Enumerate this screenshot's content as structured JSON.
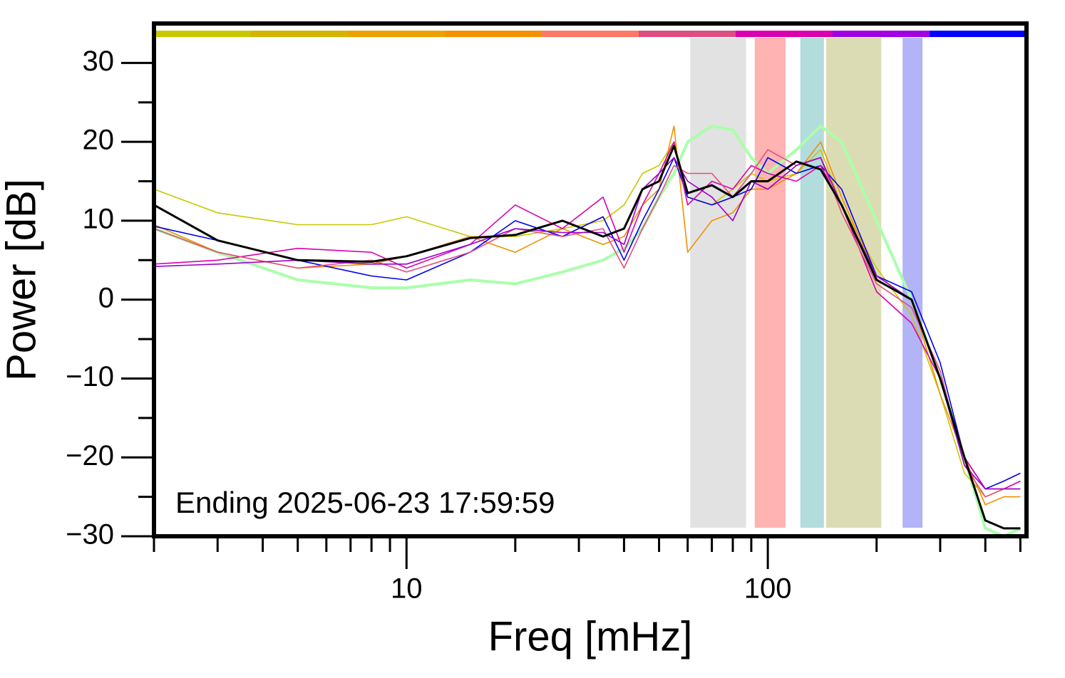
{
  "chart_data": {
    "type": "line",
    "x_label": "Freq [mHz]",
    "y_label": "Power [dB]",
    "annotation": "Ending 2025-06-23 17:59:59",
    "xlog": true,
    "xlim": [
      2,
      520
    ],
    "ylim": [
      -30,
      35
    ],
    "xticks": [
      10,
      100
    ],
    "xminorticks": [
      2,
      3,
      4,
      5,
      6,
      7,
      8,
      9,
      20,
      30,
      40,
      50,
      60,
      70,
      80,
      90,
      200,
      300,
      400,
      500
    ],
    "yticks": [
      {
        "value": -30,
        "label": "−30"
      },
      {
        "value": -20,
        "label": "−20"
      },
      {
        "value": -10,
        "label": "−10"
      },
      0,
      10,
      20,
      30
    ],
    "yminorticks": [
      -25,
      -15,
      -5,
      5,
      15,
      25
    ],
    "bands": [
      {
        "from": 61,
        "to": 87,
        "color": "#e2e2e2"
      },
      {
        "from": 92,
        "to": 112,
        "color": "#ffb3b3"
      },
      {
        "from": 123,
        "to": 143,
        "color": "#b3dcdc"
      },
      {
        "from": 145,
        "to": 206,
        "color": "#dcdcb4"
      },
      {
        "from": 236,
        "to": 268,
        "color": "#b3b3f7"
      }
    ],
    "color_bar": [
      "#c8c800",
      "#d4b400",
      "#eda000",
      "#f59000",
      "#ff7a66",
      "#dc4f84",
      "#d800b0",
      "#a000e0",
      "#0000ff"
    ],
    "x": [
      2,
      3,
      5,
      8,
      10,
      15,
      20,
      27,
      35,
      40,
      45,
      50,
      55,
      60,
      70,
      80,
      90,
      100,
      120,
      140,
      160,
      200,
      250,
      300,
      350,
      400,
      450,
      500
    ],
    "series": [
      {
        "color": "#aaffaa",
        "width": 4,
        "values": [
          9,
          6,
          2.5,
          1.5,
          1.5,
          2.5,
          2,
          3.5,
          5,
          6.5,
          9,
          13,
          16,
          20,
          22,
          21.5,
          18,
          16,
          19,
          22,
          20,
          10,
          0,
          -10,
          -20,
          -29,
          -30,
          -29
        ]
      },
      {
        "color": "#c8c800",
        "width": 1.6,
        "values": [
          14,
          11,
          9.5,
          9.5,
          10.5,
          8,
          8,
          9,
          10,
          12,
          16,
          17,
          20,
          13,
          12,
          14,
          16,
          15,
          16,
          19,
          12,
          4,
          -2,
          -12,
          -22,
          -25,
          -24,
          -24
        ]
      },
      {
        "color": "#f09000",
        "width": 1.6,
        "values": [
          9.5,
          6,
          4,
          4.5,
          5.5,
          8,
          6,
          9,
          7,
          8,
          12,
          14,
          22,
          6,
          10,
          11,
          14,
          14,
          16,
          20,
          13,
          3,
          0,
          -12,
          -20,
          -26,
          -25,
          -25
        ]
      },
      {
        "color": "#0000ee",
        "width": 1.6,
        "values": [
          9.3,
          7.5,
          5,
          3,
          2.5,
          6,
          10,
          8,
          10.5,
          5,
          10,
          14,
          18,
          13,
          12,
          13,
          14,
          18,
          16,
          17,
          14,
          3,
          1,
          -8,
          -20,
          -24,
          -23,
          -22
        ]
      },
      {
        "color": "#d800b0",
        "width": 1.6,
        "values": [
          4.5,
          5,
          6.5,
          6,
          4,
          7,
          12,
          9,
          13,
          6,
          12,
          16,
          20,
          12,
          15,
          14,
          17,
          16,
          15,
          17,
          12,
          1,
          -3,
          -10,
          -20,
          -24,
          -24,
          -23
        ]
      },
      {
        "color": "#e05080",
        "width": 1.6,
        "values": [
          9,
          6,
          4,
          5,
          3.5,
          6,
          9,
          8,
          9,
          4,
          9,
          13,
          17,
          16,
          16,
          13,
          16,
          19,
          17,
          18,
          11,
          2,
          -1,
          -9,
          -21,
          -25,
          -24,
          -24
        ]
      },
      {
        "color": "#9900cc",
        "width": 1.6,
        "values": [
          4.2,
          4.5,
          5,
          4.5,
          4.5,
          7,
          9,
          8.5,
          8.5,
          7,
          14,
          16,
          18,
          15,
          13,
          10,
          15,
          14,
          17,
          18,
          12,
          3,
          0,
          -10,
          -21,
          -24,
          -24,
          -24
        ]
      },
      {
        "color": "#000000",
        "width": 3,
        "values": [
          12,
          7.5,
          5,
          4.8,
          5.5,
          7.8,
          8.2,
          10,
          8,
          9,
          14,
          15,
          19.5,
          13.5,
          14.5,
          13,
          15,
          15,
          17.5,
          16.5,
          12,
          2.5,
          0,
          -10,
          -20,
          -28,
          -29,
          -29
        ]
      }
    ]
  }
}
